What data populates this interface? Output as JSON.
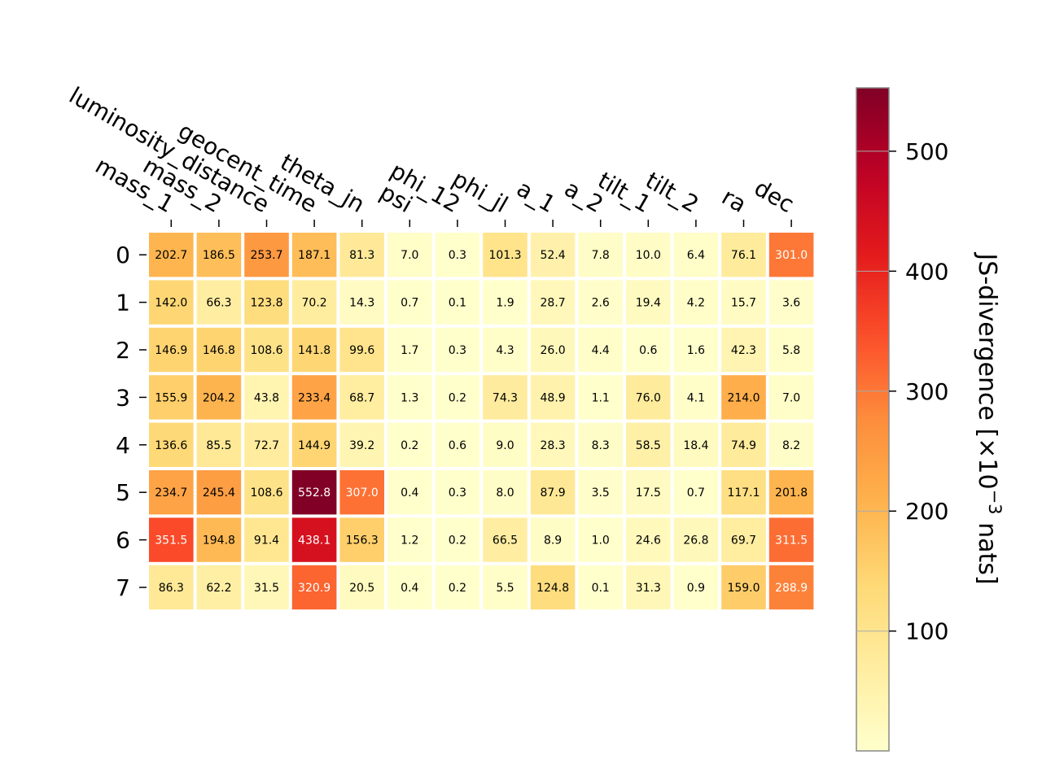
{
  "chart_data": {
    "type": "heatmap",
    "title": "",
    "columns": [
      "mass_1",
      "mass_2",
      "luminosity_distance",
      "geocent_time",
      "theta_jn",
      "psi",
      "phi_12",
      "phi_jl",
      "a_1",
      "a_2",
      "tilt_1",
      "tilt_2",
      "ra",
      "dec"
    ],
    "rows": [
      "0",
      "1",
      "2",
      "3",
      "4",
      "5",
      "6",
      "7"
    ],
    "values": [
      [
        202.7,
        186.5,
        253.7,
        187.1,
        81.3,
        7.0,
        0.3,
        101.3,
        52.4,
        7.8,
        10.0,
        6.4,
        76.1,
        301.0
      ],
      [
        142.0,
        66.3,
        123.8,
        70.2,
        14.3,
        0.7,
        0.1,
        1.9,
        28.7,
        2.6,
        19.4,
        4.2,
        15.7,
        3.6
      ],
      [
        146.9,
        146.8,
        108.6,
        141.8,
        99.6,
        1.7,
        0.3,
        4.3,
        26.0,
        4.4,
        0.6,
        1.6,
        42.3,
        5.8
      ],
      [
        155.9,
        204.2,
        43.8,
        233.4,
        68.7,
        1.3,
        0.2,
        74.3,
        48.9,
        1.1,
        76.0,
        4.1,
        214.0,
        7.0
      ],
      [
        136.6,
        85.5,
        72.7,
        144.9,
        39.2,
        0.2,
        0.6,
        9.0,
        28.3,
        8.3,
        58.5,
        18.4,
        74.9,
        8.2
      ],
      [
        234.7,
        245.4,
        108.6,
        552.8,
        307.0,
        0.4,
        0.3,
        8.0,
        87.9,
        3.5,
        17.5,
        0.7,
        117.1,
        201.8
      ],
      [
        351.5,
        194.8,
        91.4,
        438.1,
        156.3,
        1.2,
        0.2,
        66.5,
        8.9,
        1.0,
        24.6,
        26.8,
        69.7,
        311.5
      ],
      [
        86.3,
        62.2,
        31.5,
        320.9,
        20.5,
        0.4,
        0.2,
        5.5,
        124.8,
        0.1,
        31.3,
        0.9,
        159.0,
        288.9
      ]
    ],
    "value_labels": [
      [
        "202.7",
        "186.5",
        "253.7",
        "187.1",
        "81.3",
        "7.0",
        "0.3",
        "101.3",
        "52.4",
        "7.8",
        "10.0",
        "6.4",
        "76.1",
        "301.0"
      ],
      [
        "142.0",
        "66.3",
        "123.8",
        "70.2",
        "14.3",
        "0.7",
        "0.1",
        "1.9",
        "28.7",
        "2.6",
        "19.4",
        "4.2",
        "15.7",
        "3.6"
      ],
      [
        "146.9",
        "146.8",
        "108.6",
        "141.8",
        "99.6",
        "1.7",
        "0.3",
        "4.3",
        "26.0",
        "4.4",
        "0.6",
        "1.6",
        "42.3",
        "5.8"
      ],
      [
        "155.9",
        "204.2",
        "43.8",
        "233.4",
        "68.7",
        "1.3",
        "0.2",
        "74.3",
        "48.9",
        "1.1",
        "76.0",
        "4.1",
        "214.0",
        "7.0"
      ],
      [
        "136.6",
        "85.5",
        "72.7",
        "144.9",
        "39.2",
        "0.2",
        "0.6",
        "9.0",
        "28.3",
        "8.3",
        "58.5",
        "18.4",
        "74.9",
        "8.2"
      ],
      [
        "234.7",
        "245.4",
        "108.6",
        "552.8",
        "307.0",
        "0.4",
        "0.3",
        "8.0",
        "87.9",
        "3.5",
        "17.5",
        "0.7",
        "117.1",
        "201.8"
      ],
      [
        "351.5",
        "194.8",
        "91.4",
        "438.1",
        "156.3",
        "1.2",
        "0.2",
        "66.5",
        "8.9",
        "1.0",
        "24.6",
        "26.8",
        "69.7",
        "311.5"
      ],
      [
        "86.3",
        "62.2",
        "31.5",
        "320.9",
        "20.5",
        "0.4",
        "0.2",
        "5.5",
        "124.8",
        "0.1",
        "31.3",
        "0.9",
        "159.0",
        "288.9"
      ]
    ],
    "colormap": "YlOrRd",
    "vmin": 0.1,
    "vmax": 552.8,
    "text_color_dark": "#000000",
    "text_color_light": "#ffffff",
    "colorbar": {
      "ticks": [
        100,
        200,
        300,
        400,
        500
      ],
      "tick_labels": [
        "100",
        "200",
        "300",
        "400",
        "500"
      ],
      "label": "JS-divergence [×10",
      "label_exponent": "−3",
      "label_suffix": " nats]"
    }
  }
}
